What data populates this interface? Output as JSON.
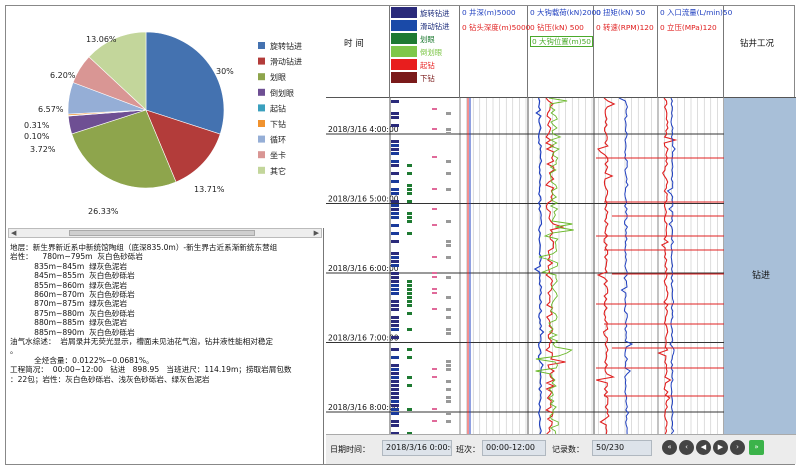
{
  "pie": {
    "slices": [
      {
        "label": "旋转钻进",
        "pct_label": "30%",
        "value": 30.0,
        "color": "#4472b0"
      },
      {
        "label": "滑动钻进",
        "pct_label": "13.71%",
        "value": 13.71,
        "color": "#b33c3a"
      },
      {
        "label": "划眼",
        "pct_label": "26.33%",
        "value": 26.33,
        "color": "#8ea54c"
      },
      {
        "label": "倒划眼",
        "pct_label": "3.72%",
        "value": 3.72,
        "color": "#6e4f93"
      },
      {
        "label": "起钻",
        "pct_label": "0.10%",
        "value": 0.1,
        "color": "#3aa0be"
      },
      {
        "label": "下钻",
        "pct_label": "0.31%",
        "value": 0.31,
        "color": "#f0922e"
      },
      {
        "label": "循环",
        "pct_label": "6.57%",
        "value": 6.57,
        "color": "#95aed6"
      },
      {
        "label": "坐卡",
        "pct_label": "6.20%",
        "value": 6.2,
        "color": "#d99694"
      },
      {
        "label": "其它",
        "pct_label": "13.06%",
        "value": 13.06,
        "color": "#c3d69b"
      }
    ]
  },
  "scroll": {
    "left_arrow": "◀",
    "right_arrow": "▶"
  },
  "text_lines": [
    "地层：新生界新近系中新统馆陶组（底深835.0m）-新生界古近系渐新统东营组",
    "岩性：    780m~795m  灰白色砂砾岩",
    "          835m~845m  绿灰色泥岩",
    "          845m~855m  灰白色砂砾岩",
    "          855m~860m  绿灰色泥岩",
    "          860m~870m  灰白色砂砾岩",
    "          870m~875m  绿灰色泥岩",
    "          875m~880m  灰白色砂砾岩",
    "          880m~885m  绿灰色泥岩",
    "          885m~890m  灰白色砂砾岩",
    "油气水综述：  岩屑录井无荧光显示，槽面未见油花气泡，钻井液性能相对稳定",
    "。",
    "          全烃含量：0.0122%~0.0681%。",
    "工程简况：  00:00~12:00   钻进   898.95   当班进尺：114.19m；捞取岩屑包数",
    "：22包；岩性：灰白色砂砾岩、浅灰色砂砾岩、绿灰色泥岩"
  ],
  "header": {
    "time_col": "时 间",
    "status_col": "钻井工况",
    "legend": [
      {
        "label": "旋转钻进",
        "color": "#2a2a7a"
      },
      {
        "label": "滑动钻进",
        "color": "#1a4aa8"
      },
      {
        "label": "划眼",
        "color": "#1e7a32"
      },
      {
        "label": "倒划眼",
        "color": "#7fc74a"
      },
      {
        "label": "起钻",
        "color": "#e81e1e"
      },
      {
        "label": "下钻",
        "color": "#7a1a1a"
      }
    ],
    "track1": {
      "l1": "0   井深(m)5000",
      "l2": "0  钻头深度(m)5000"
    },
    "track2": {
      "l1": "0  大钩载荷(kN)2000",
      "l2": "0   钻压(kN) 500",
      "l3": "0  大钩位置(m)50"
    },
    "track3": {
      "l1": "0   扭矩(kN)   50",
      "l2": "0   转速(RPM)120"
    },
    "track4": {
      "l1": "0  入口流量(L/min)50",
      "l2": "0   立压(MPa)120"
    }
  },
  "chart_data": {
    "type": "line",
    "time_ticks": [
      "2018/3/16 4:00:00",
      "2018/3/16 5:00:00",
      "2018/3/16 6:00:00",
      "2018/3/16 7:00:00",
      "2018/3/16 8:00:00"
    ],
    "status_label": "钻进"
  },
  "footer": {
    "date_label": "日期时间：",
    "date_value": "2018/3/16 0:00:00",
    "shift_label": "班次：",
    "shift_value": "00:00-12:00",
    "records_label": "记录数：",
    "records_value": "50/230",
    "nav": [
      "«",
      "‹",
      "◀",
      "▶",
      "›",
      "»"
    ]
  }
}
